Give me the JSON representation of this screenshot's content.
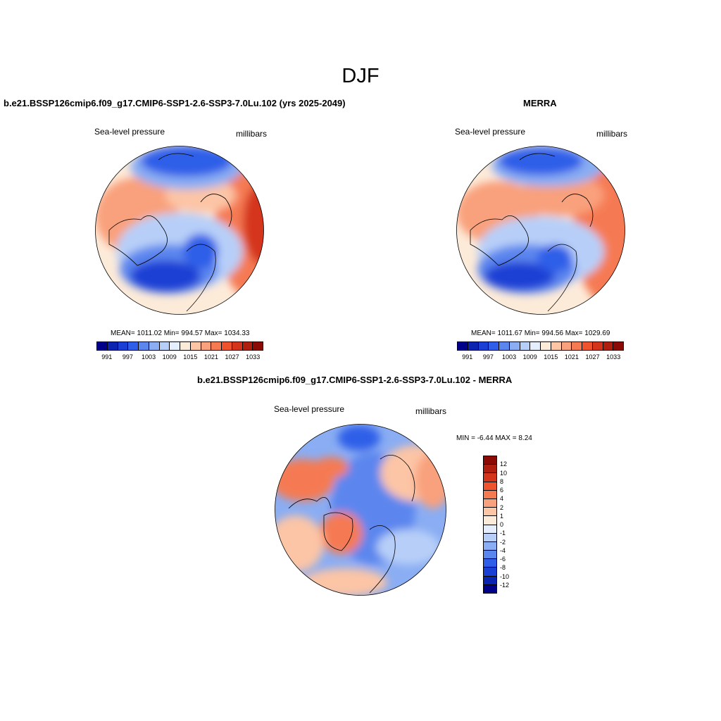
{
  "title": "DJF",
  "panels": {
    "model": {
      "title": "b.e21.BSSP126cmip6.f09_g17.CMIP6-SSP1-2.6-SSP3-7.0Lu.102 (yrs 2025-2049)",
      "variable": "Sea-level pressure",
      "units": "millibars",
      "stats": "MEAN= 1011.02  Min= 994.57  Max= 1034.33"
    },
    "obs": {
      "title": "MERRA",
      "variable": "Sea-level pressure",
      "units": "millibars",
      "stats": "MEAN= 1011.67  Min= 994.56  Max= 1029.69"
    },
    "diff": {
      "title": "b.e21.BSSP126cmip6.f09_g17.CMIP6-SSP1-2.6-SSP3-7.0Lu.102 - MERRA",
      "variable": "Sea-level pressure",
      "units": "millibars",
      "stats": "MIN =  -6.44 MAX =   8.24"
    }
  },
  "colorbar_abs": {
    "colors": [
      "#00008b",
      "#0a24b0",
      "#1a3fd4",
      "#2f5ee8",
      "#5b86ee",
      "#8aadf3",
      "#b7cff8",
      "#e4eefc",
      "#fdebd9",
      "#fcc5a6",
      "#f9a07c",
      "#f57a52",
      "#ee532e",
      "#d4341a",
      "#b01e10",
      "#8b0a06"
    ],
    "ticks": [
      "991",
      "997",
      "1003",
      "1009",
      "1015",
      "1021",
      "1027",
      "1033"
    ]
  },
  "colorbar_diff": {
    "colors": [
      "#8b0a06",
      "#b01e10",
      "#d4341a",
      "#ee532e",
      "#f57a52",
      "#f9a07c",
      "#fcc5a6",
      "#fdebd9",
      "#e4eefc",
      "#b7cff8",
      "#8aadf3",
      "#5b86ee",
      "#2f5ee8",
      "#1a3fd4",
      "#0a24b0",
      "#00008b"
    ],
    "ticks": [
      "12",
      "10",
      "8",
      "6",
      "4",
      "2",
      "1",
      "0",
      "-1",
      "-2",
      "-4",
      "-6",
      "-8",
      "-10",
      "-12"
    ]
  }
}
